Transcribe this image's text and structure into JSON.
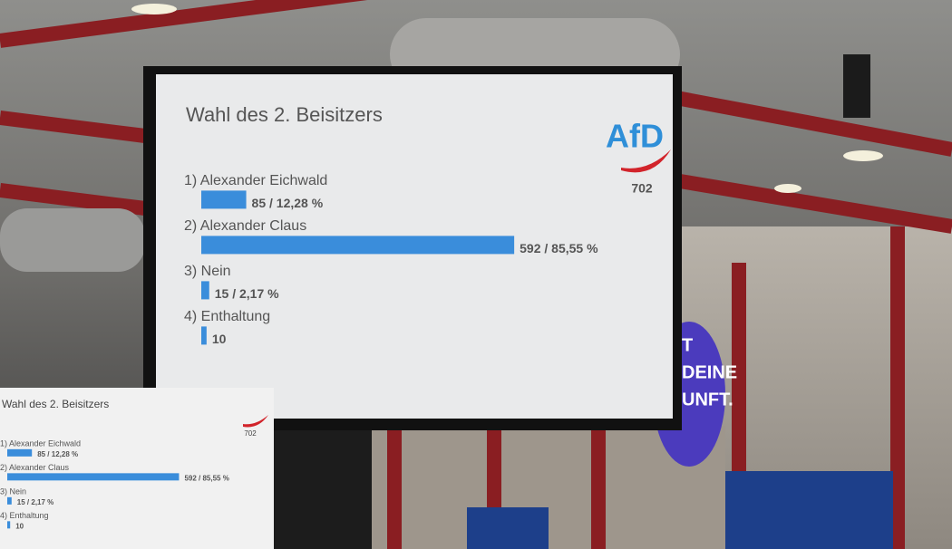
{
  "screen": {
    "title": "Wahl des 2. Beisitzers",
    "logo": "AfD",
    "count": "702",
    "items": [
      {
        "label": "1) Alexander Eichwald",
        "value": 85,
        "value_label": "85 / 12,28 %"
      },
      {
        "label": "2) Alexander Claus",
        "value": 592,
        "value_label": "592 / 85,55 %"
      },
      {
        "label": "3) Nein",
        "value": 15,
        "value_label": "15 / 2,17 %"
      },
      {
        "label": "4) Enthaltung",
        "value": 10,
        "value_label": "10"
      }
    ]
  },
  "banner": {
    "lines": [
      "T",
      "DEINE",
      "UNFT."
    ]
  }
}
